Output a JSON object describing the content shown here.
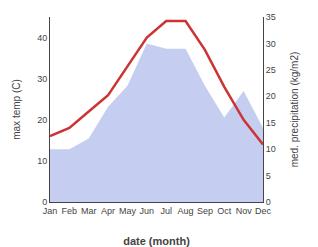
{
  "chart_data": {
    "type": "line",
    "xlabel": "date (month)",
    "ylabel": "max temp (C)",
    "y2label": "med. precipitation (kg/m2)",
    "categories": [
      "Jan",
      "Feb",
      "Mar",
      "Apr",
      "May",
      "Jun",
      "Jul",
      "Aug",
      "Sep",
      "Oct",
      "Nov",
      "Dec"
    ],
    "series": [
      {
        "type": "area",
        "color": "#c5cef0",
        "axis": "y2",
        "values": [
          10,
          10,
          12,
          18,
          22,
          30,
          29,
          29,
          22,
          16,
          21,
          14
        ]
      },
      {
        "type": "line",
        "color": "#cc3333",
        "values": [
          16,
          18,
          22,
          26,
          33,
          40,
          44,
          44,
          37,
          28,
          20,
          14
        ]
      }
    ],
    "ylim": [
      0,
      45
    ],
    "yticks": [
      0,
      10,
      20,
      30,
      40
    ],
    "y2lim": [
      0,
      35
    ],
    "y2ticks": [
      0,
      5,
      10,
      15,
      20,
      25,
      30,
      35
    ],
    "grid": false
  }
}
